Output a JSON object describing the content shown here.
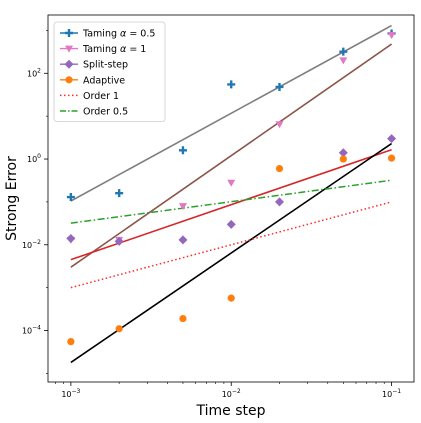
{
  "chart_data": {
    "type": "scatter",
    "xlabel": "Time step",
    "ylabel": "Strong Error",
    "xscale": "log",
    "yscale": "log",
    "xlim": [
      0.00072,
      0.138
    ],
    "ylim": [
      6.3e-06,
      2290
    ],
    "grid": false,
    "legend_position": "upper left",
    "x_ticks": [
      {
        "value": 0.001,
        "base": "10",
        "exp": "−3"
      },
      {
        "value": 0.01,
        "base": "10",
        "exp": "−2"
      },
      {
        "value": 0.1,
        "base": "10",
        "exp": "−1"
      }
    ],
    "y_ticks": [
      {
        "value": 0.0001,
        "base": "10",
        "exp": "−4"
      },
      {
        "value": 0.01,
        "base": "10",
        "exp": "−2"
      },
      {
        "value": 1,
        "base": "10",
        "exp": "0"
      },
      {
        "value": 100,
        "base": "10",
        "exp": "2"
      }
    ],
    "series": [
      {
        "name": "Taming α = 0.5",
        "label_prefix": "Taming ",
        "label_symbol": "α",
        "label_suffix": " = 0.5",
        "color": "#1f77b4",
        "marker": "plus",
        "line_style": "solid",
        "line_color": "#7f7f7f",
        "points": [
          [
            0.001,
            0.13
          ],
          [
            0.002,
            0.16
          ],
          [
            0.005,
            1.6
          ],
          [
            0.01,
            55
          ],
          [
            0.02,
            48
          ],
          [
            0.05,
            320
          ],
          [
            0.1,
            850
          ]
        ]
      },
      {
        "name": "Taming α = 1",
        "label_prefix": "Taming ",
        "label_symbol": "α",
        "label_suffix": " = 1",
        "color": "#e377c2",
        "marker": "triangle_down",
        "line_style": "solid",
        "line_color": "#8c564b",
        "points": [
          [
            0.001,
            0.013
          ],
          [
            0.002,
            0.013
          ],
          [
            0.005,
            0.08
          ],
          [
            0.01,
            0.28
          ],
          [
            0.02,
            6.5
          ],
          [
            0.05,
            200
          ],
          [
            0.1,
            780
          ]
        ]
      },
      {
        "name": "Split-step",
        "label_prefix": "Split-step",
        "label_symbol": "",
        "label_suffix": "",
        "color": "#9467bd",
        "marker": "diamond",
        "line_style": "solid",
        "line_color": "#d62728",
        "points": [
          [
            0.001,
            0.014
          ],
          [
            0.002,
            0.012
          ],
          [
            0.005,
            0.013
          ],
          [
            0.01,
            0.03
          ],
          [
            0.02,
            0.1
          ],
          [
            0.05,
            1.4
          ],
          [
            0.1,
            3.0
          ]
        ]
      },
      {
        "name": "Adaptive",
        "label_prefix": "Adaptive",
        "label_symbol": "",
        "label_suffix": "",
        "color": "#ff7f0e",
        "marker": "circle",
        "line_style": "solid",
        "line_color": "#000000",
        "points": [
          [
            0.001,
            5.5e-05
          ],
          [
            0.002,
            0.00011
          ],
          [
            0.005,
            0.00019
          ],
          [
            0.01,
            0.00057
          ],
          [
            0.02,
            0.6
          ],
          [
            0.05,
            1.0
          ],
          [
            0.1,
            1.05
          ]
        ]
      },
      {
        "name": "Order 1",
        "label_prefix": "Order 1",
        "label_symbol": "",
        "label_suffix": "",
        "color": "#ff2a2a",
        "marker": "none",
        "line_style": "dotted",
        "points": [
          [
            0.001,
            0.001
          ],
          [
            0.1,
            0.1
          ]
        ]
      },
      {
        "name": "Order 0.5",
        "label_prefix": "Order 0.5",
        "label_symbol": "",
        "label_suffix": "",
        "color": "#2ca02c",
        "marker": "none",
        "line_style": "dashdot",
        "points": [
          [
            0.001,
            0.032
          ],
          [
            0.1,
            0.32
          ]
        ]
      }
    ],
    "fit_lines": [
      {
        "color": "#7f7f7f",
        "points": [
          [
            0.001,
            0.105
          ],
          [
            0.1,
            1300
          ]
        ]
      },
      {
        "color": "#8c564b",
        "points": [
          [
            0.001,
            0.003
          ],
          [
            0.1,
            480
          ]
        ]
      },
      {
        "color": "#d62728",
        "points": [
          [
            0.001,
            0.0045
          ],
          [
            0.1,
            1.65
          ]
        ]
      },
      {
        "color": "#000000",
        "points": [
          [
            0.001,
            1.8e-05
          ],
          [
            0.1,
            2.3
          ]
        ]
      }
    ]
  }
}
